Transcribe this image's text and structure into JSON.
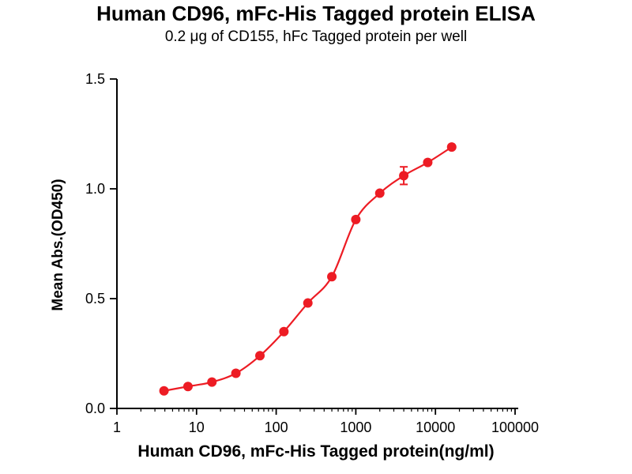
{
  "chart_data": {
    "type": "scatter",
    "title": "Human CD96, mFc-His Tagged protein ELISA",
    "subtitle": "0.2 μg of CD155, hFc Tagged protein per well",
    "xlabel": "Human CD96, mFc-His Tagged protein(ng/ml)",
    "ylabel": "Mean Abs.(OD450)",
    "x_scale": "log10",
    "xlim": [
      1,
      100000
    ],
    "ylim": [
      0,
      1.5
    ],
    "x_ticks": [
      1,
      10,
      100,
      1000,
      10000,
      100000
    ],
    "x_tick_labels": [
      "1",
      "10",
      "100",
      "1000",
      "10000",
      "100000"
    ],
    "y_ticks": [
      0,
      0.5,
      1.0,
      1.5
    ],
    "y_tick_labels": [
      "0.0",
      "0.5",
      "1.0",
      "1.5"
    ],
    "grid": false,
    "legend": "none",
    "axis_color": "#000000",
    "series": [
      {
        "name": "Human CD96 binding to CD155",
        "color": "#ed1c24",
        "marker": "circle",
        "x": [
          3.9,
          7.8,
          15.6,
          31.2,
          62.5,
          125,
          250,
          500,
          1000,
          2000,
          4000,
          8000,
          16000
        ],
        "y": [
          0.08,
          0.1,
          0.12,
          0.16,
          0.24,
          0.35,
          0.48,
          0.6,
          0.86,
          0.98,
          1.06,
          1.12,
          1.19
        ],
        "y_err": [
          0,
          0,
          0,
          0,
          0,
          0,
          0,
          0,
          0,
          0,
          0.04,
          0,
          0
        ]
      }
    ]
  }
}
